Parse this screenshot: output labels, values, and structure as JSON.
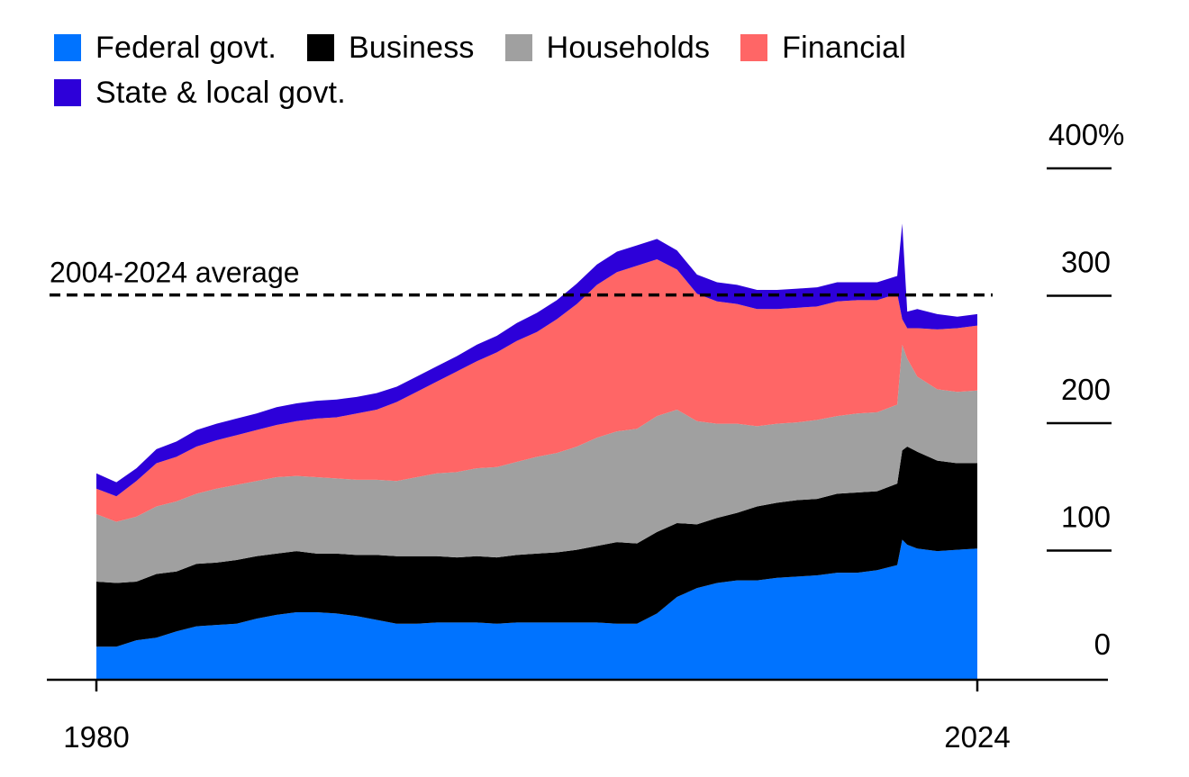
{
  "chart_data": {
    "type": "area",
    "stacked": true,
    "title": "",
    "xlabel": "",
    "ylabel": "",
    "x_tick_labels": [
      "1980",
      "2024"
    ],
    "y_ticks": [
      0,
      100,
      200,
      300,
      400
    ],
    "y_tick_labels": [
      "0",
      "100",
      "200",
      "300",
      "400%"
    ],
    "ylim": [
      0,
      400
    ],
    "xlim": [
      1980,
      2024
    ],
    "legend_position": "top",
    "annotation": {
      "label": "2004-2024 average",
      "value": 302
    },
    "x": [
      1980,
      1981,
      1982,
      1983,
      1984,
      1985,
      1986,
      1987,
      1988,
      1989,
      1990,
      1991,
      1992,
      1993,
      1994,
      1995,
      1996,
      1997,
      1998,
      1999,
      2000,
      2001,
      2002,
      2003,
      2004,
      2005,
      2006,
      2007,
      2008,
      2009,
      2010,
      2011,
      2012,
      2013,
      2014,
      2015,
      2016,
      2017,
      2018,
      2019,
      2020,
      2020.25,
      2020.5,
      2021,
      2022,
      2023,
      2024
    ],
    "series": [
      {
        "name": "Federal govt.",
        "color": "#0073ff",
        "values": [
          26,
          26,
          31,
          33,
          38,
          42,
          43,
          44,
          48,
          51,
          53,
          53,
          52,
          50,
          47,
          44,
          44,
          45,
          45,
          45,
          44,
          45,
          45,
          45,
          45,
          45,
          44,
          44,
          52,
          65,
          72,
          76,
          78,
          78,
          80,
          81,
          82,
          84,
          84,
          86,
          90,
          110,
          106,
          103,
          101,
          102,
          103
        ]
      },
      {
        "name": "Business",
        "color": "#000000",
        "values": [
          51,
          50,
          46,
          50,
          47,
          49,
          49,
          50,
          49,
          48,
          48,
          46,
          47,
          48,
          51,
          53,
          53,
          52,
          51,
          52,
          52,
          53,
          54,
          55,
          57,
          60,
          64,
          63,
          64,
          58,
          50,
          51,
          53,
          58,
          59,
          60,
          60,
          62,
          63,
          62,
          64,
          70,
          77,
          76,
          71,
          68,
          67
        ]
      },
      {
        "name": "Households",
        "color": "#a0a0a0",
        "values": [
          53,
          48,
          51,
          53,
          55,
          55,
          58,
          59,
          59,
          60,
          59,
          60,
          59,
          59,
          59,
          59,
          62,
          65,
          67,
          69,
          71,
          73,
          76,
          78,
          81,
          85,
          87,
          90,
          91,
          89,
          81,
          74,
          70,
          63,
          62,
          61,
          62,
          61,
          62,
          62,
          62,
          83,
          69,
          59,
          56,
          56,
          57
        ]
      },
      {
        "name": "Financial",
        "color": "#ff6666",
        "values": [
          20,
          20,
          28,
          34,
          35,
          37,
          38,
          39,
          40,
          41,
          43,
          46,
          48,
          52,
          55,
          62,
          67,
          72,
          79,
          84,
          90,
          95,
          98,
          105,
          112,
          120,
          125,
          128,
          123,
          110,
          100,
          96,
          94,
          92,
          90,
          90,
          89,
          90,
          89,
          88,
          87,
          20,
          24,
          38,
          47,
          50,
          51
        ]
      },
      {
        "name": "State & local govt.",
        "color": "#2d00d9",
        "values": [
          12,
          11,
          10,
          11,
          12,
          13,
          13,
          13,
          13,
          14,
          14,
          14,
          14,
          13,
          13,
          12,
          12,
          12,
          12,
          13,
          13,
          14,
          15,
          15,
          16,
          16,
          16,
          16,
          16,
          15,
          15,
          15,
          15,
          15,
          15,
          15,
          15,
          15,
          14,
          14,
          14,
          75,
          13,
          15,
          12,
          9,
          9
        ]
      }
    ]
  }
}
